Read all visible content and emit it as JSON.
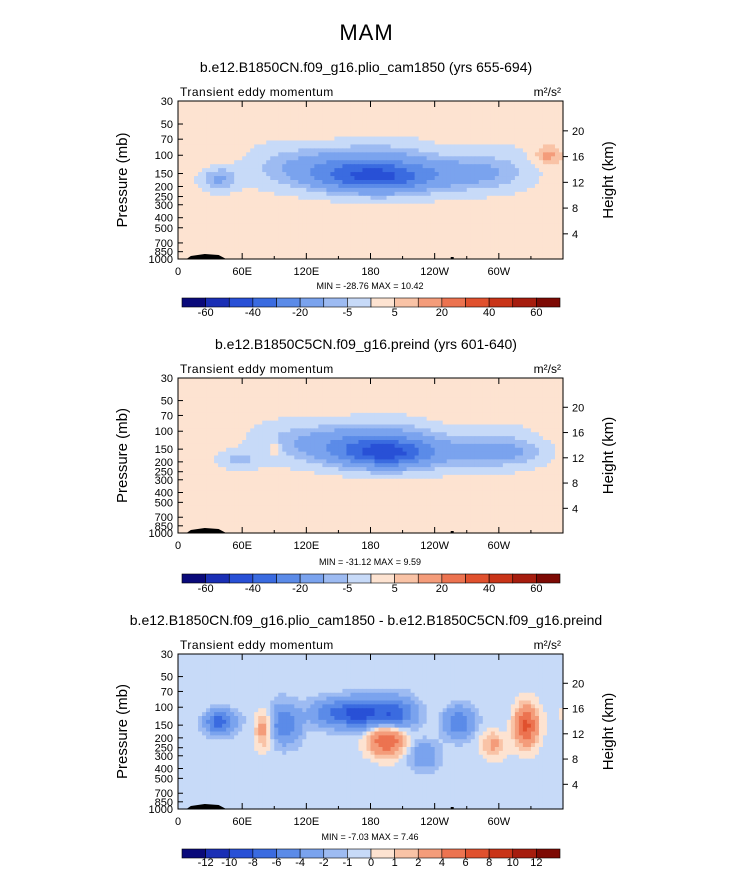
{
  "figure": {
    "title": "MAM"
  },
  "chart_data": [
    {
      "type": "heatmap",
      "title": "b.e12.B1850CN.f09_g16.plio_cam1850 (yrs 655-694)",
      "left_string": "Transient eddy momentum",
      "units": "m²/s²",
      "ylabel": "Pressure (mb)",
      "ylabel_right": "Height (km)",
      "x_ticks": [
        "0",
        "60E",
        "120E",
        "180",
        "120W",
        "60W"
      ],
      "y_ticks": [
        "30",
        "50",
        "70",
        "100",
        "150",
        "200",
        "250",
        "300",
        "400",
        "500",
        "700",
        "850",
        "1000"
      ],
      "height_ticks": [
        "20",
        "16",
        "12",
        "8",
        "4"
      ],
      "stats": {
        "min_label": "MIN =",
        "min": "-28.76",
        "max_label": "MAX =",
        "max": "10.42"
      },
      "colorbar_labels": [
        "-60",
        "-40",
        "-20",
        "-5",
        "5",
        "20",
        "40",
        "60"
      ],
      "levels": [
        -70,
        -60,
        -50,
        -40,
        -30,
        -20,
        -10,
        -5,
        0,
        5,
        10,
        20,
        30,
        40,
        50,
        60,
        70
      ],
      "colors": [
        "#0a0a7a",
        "#1a2fb5",
        "#2850d6",
        "#3a6be0",
        "#5b8be8",
        "#7aa3ee",
        "#9dbbf2",
        "#c7daf8",
        "#fde3d1",
        "#f9c3a6",
        "#f49c7a",
        "#ec7350",
        "#e0512e",
        "#c93418",
        "#a61d0e",
        "#7d0a04"
      ],
      "field_background": 2,
      "features": [
        {
          "lon": 185,
          "lat_p": 165,
          "amp": -28.76,
          "lon_w": 35,
          "p_w": 40
        },
        {
          "lon": 145,
          "lat_p": 130,
          "amp": -16,
          "lon_w": 40,
          "p_w": 45
        },
        {
          "lon": 210,
          "lat_p": 140,
          "amp": -12,
          "lon_w": 60,
          "p_w": 60
        },
        {
          "lon": 38,
          "lat_p": 170,
          "amp": -14,
          "lon_w": 12,
          "p_w": 35
        },
        {
          "lon": 275,
          "lat_p": 150,
          "amp": -10,
          "lon_w": 30,
          "p_w": 40
        },
        {
          "lon": 345,
          "lat_p": 100,
          "amp": 10.42,
          "lon_w": 8,
          "p_w": 15
        }
      ]
    },
    {
      "type": "heatmap",
      "title": "b.e12.B1850C5CN.f09_g16.preind (yrs 601-640)",
      "left_string": "Transient eddy momentum",
      "units": "m²/s²",
      "ylabel": "Pressure (mb)",
      "ylabel_right": "Height (km)",
      "x_ticks": [
        "0",
        "60E",
        "120E",
        "180",
        "120W",
        "60W"
      ],
      "y_ticks": [
        "30",
        "50",
        "70",
        "100",
        "150",
        "200",
        "250",
        "300",
        "400",
        "500",
        "700",
        "850",
        "1000"
      ],
      "height_ticks": [
        "20",
        "16",
        "12",
        "8",
        "4"
      ],
      "stats": {
        "min_label": "MIN =",
        "min": "-31.12",
        "max_label": "MAX =",
        "max": "9.59"
      },
      "colorbar_labels": [
        "-60",
        "-40",
        "-20",
        "-5",
        "5",
        "20",
        "40",
        "60"
      ],
      "levels": [
        -70,
        -60,
        -50,
        -40,
        -30,
        -20,
        -10,
        -5,
        0,
        5,
        10,
        20,
        30,
        40,
        50,
        60,
        70
      ],
      "colors": [
        "#0a0a7a",
        "#1a2fb5",
        "#2850d6",
        "#3a6be0",
        "#5b8be8",
        "#7aa3ee",
        "#9dbbf2",
        "#c7daf8",
        "#fde3d1",
        "#f9c3a6",
        "#f49c7a",
        "#ec7350",
        "#e0512e",
        "#c93418",
        "#a61d0e",
        "#7d0a04"
      ],
      "field_background": 2,
      "features": [
        {
          "lon": 195,
          "lat_p": 165,
          "amp": -31.12,
          "lon_w": 30,
          "p_w": 40
        },
        {
          "lon": 150,
          "lat_p": 130,
          "amp": -16,
          "lon_w": 40,
          "p_w": 45
        },
        {
          "lon": 215,
          "lat_p": 145,
          "amp": -12,
          "lon_w": 55,
          "p_w": 60
        },
        {
          "lon": 300,
          "lat_p": 160,
          "amp": -12,
          "lon_w": 30,
          "p_w": 40
        },
        {
          "lon": 55,
          "lat_p": 190,
          "amp": -8,
          "lon_w": 15,
          "p_w": 30
        },
        {
          "lon": 90,
          "lat_p": 150,
          "amp": 9.59,
          "lon_w": 4,
          "p_w": 20
        }
      ]
    },
    {
      "type": "heatmap",
      "title": "b.e12.B1850CN.f09_g16.plio_cam1850 - b.e12.B1850C5CN.f09_g16.preind",
      "left_string": "Transient eddy momentum",
      "units": "m²/s²",
      "ylabel": "Pressure (mb)",
      "ylabel_right": "Height (km)",
      "x_ticks": [
        "0",
        "60E",
        "120E",
        "180",
        "120W",
        "60W"
      ],
      "y_ticks": [
        "30",
        "50",
        "70",
        "100",
        "150",
        "200",
        "250",
        "300",
        "400",
        "500",
        "700",
        "850",
        "1000"
      ],
      "height_ticks": [
        "20",
        "16",
        "12",
        "8",
        "4"
      ],
      "stats": {
        "min_label": "MIN =",
        "min": "-7.03",
        "max_label": "MAX =",
        "max": "7.46"
      },
      "colorbar_labels": [
        "-12",
        "-10",
        "-8",
        "-6",
        "-4",
        "-2",
        "-1",
        "0",
        "1",
        "2",
        "4",
        "6",
        "8",
        "10",
        "12"
      ],
      "levels": [
        -14,
        -12,
        -10,
        -8,
        -6,
        -4,
        -2,
        -1,
        0,
        1,
        2,
        4,
        6,
        8,
        10,
        12,
        14
      ],
      "colors": [
        "#0a0a7a",
        "#1a2fb5",
        "#2850d6",
        "#3a6be0",
        "#5b8be8",
        "#7aa3ee",
        "#9dbbf2",
        "#c7daf8",
        "#fde3d1",
        "#f9c3a6",
        "#f49c7a",
        "#ec7350",
        "#e0512e",
        "#c93418",
        "#a61d0e",
        "#7d0a04"
      ],
      "field_background": -0.5,
      "features": [
        {
          "lon": 38,
          "lat_p": 140,
          "amp": -7,
          "lon_w": 10,
          "p_w": 30
        },
        {
          "lon": 100,
          "lat_p": 150,
          "amp": -5,
          "lon_w": 10,
          "p_w": 50
        },
        {
          "lon": 145,
          "lat_p": 115,
          "amp": -6,
          "lon_w": 15,
          "p_w": 30
        },
        {
          "lon": 170,
          "lat_p": 115,
          "amp": -6.5,
          "lon_w": 12,
          "p_w": 30
        },
        {
          "lon": 200,
          "lat_p": 115,
          "amp": -7.03,
          "lon_w": 15,
          "p_w": 30
        },
        {
          "lon": 262,
          "lat_p": 140,
          "amp": -6,
          "lon_w": 10,
          "p_w": 40
        },
        {
          "lon": 195,
          "lat_p": 210,
          "amp": 7,
          "lon_w": 12,
          "p_w": 60
        },
        {
          "lon": 80,
          "lat_p": 160,
          "amp": 4,
          "lon_w": 6,
          "p_w": 60
        },
        {
          "lon": 325,
          "lat_p": 150,
          "amp": 7.46,
          "lon_w": 8,
          "p_w": 60
        },
        {
          "lon": 295,
          "lat_p": 230,
          "amp": 3,
          "lon_w": 8,
          "p_w": 60
        },
        {
          "lon": 230,
          "lat_p": 300,
          "amp": -3,
          "lon_w": 10,
          "p_w": 80
        }
      ]
    }
  ]
}
